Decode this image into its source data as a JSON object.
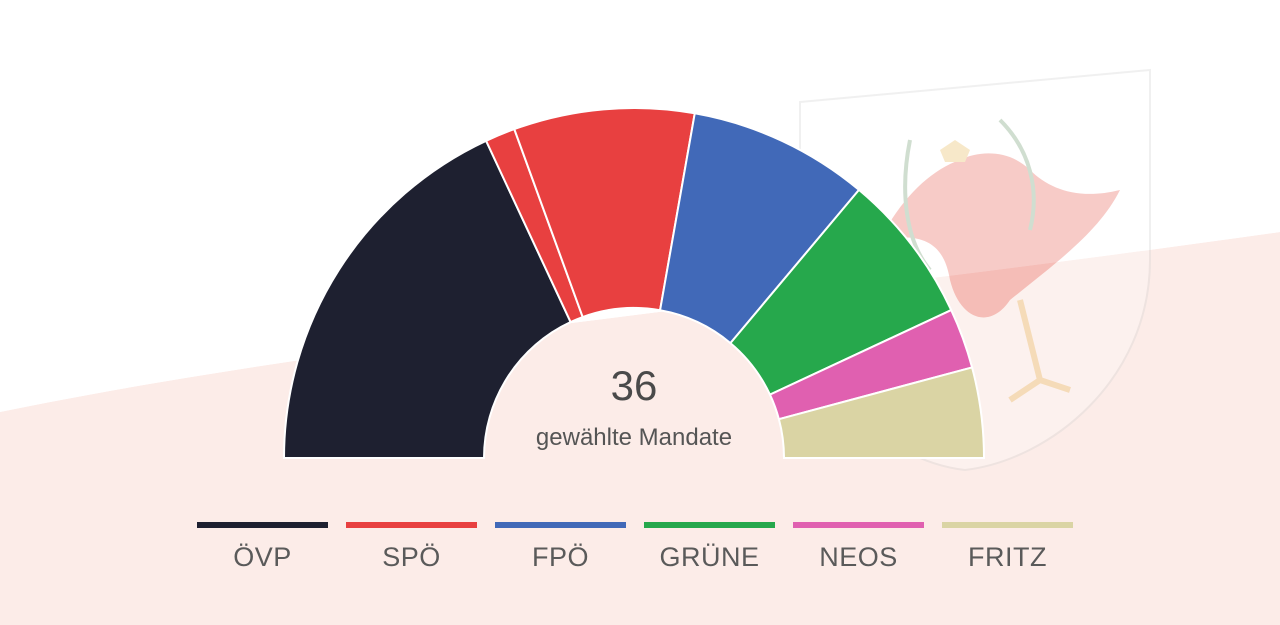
{
  "chart_data": {
    "type": "pie",
    "variant": "semicircle-parliament",
    "total": "36",
    "subtitle": "gewählte Mandate",
    "series": [
      {
        "name": "ÖVP",
        "value": 13,
        "color": "#1e2030"
      },
      {
        "name": "SPÖ",
        "value": 7,
        "color": "#e84040",
        "segments": [
          1,
          6
        ]
      },
      {
        "name": "FPÖ",
        "value": 6,
        "color": "#4169b8"
      },
      {
        "name": "GRÜNE",
        "value": 5,
        "color": "#26a84c"
      },
      {
        "name": "NEOS",
        "value": 2,
        "color": "#e060b0"
      },
      {
        "name": "FRITZ",
        "value": 3,
        "color": "#dad4a4"
      }
    ],
    "legend_position": "bottom"
  }
}
